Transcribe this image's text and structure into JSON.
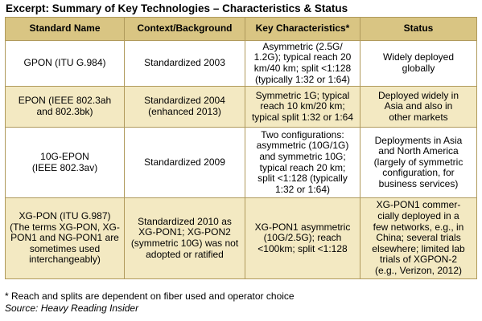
{
  "title": "Excerpt: Summary of Key Technologies – Characteristics & Status",
  "table": {
    "headers": [
      "Standard Name",
      "Context/Background",
      "Key Characteristics*",
      "Status"
    ],
    "rows": [
      {
        "name": [
          "GPON (ITU G.984)"
        ],
        "context": [
          "Standardized 2003"
        ],
        "characteristics": [
          "Asymmetric (2.5G/",
          "1.2G); typical reach 20",
          "km/40 km; split <1:128",
          "(typically 1:32 or 1:64)"
        ],
        "status": [
          "Widely deployed",
          "globally"
        ]
      },
      {
        "name": [
          "EPON (IEEE 802.3ah",
          "and 802.3bk)"
        ],
        "context": [
          "Standardized 2004",
          "(enhanced 2013)"
        ],
        "characteristics": [
          "Symmetric 1G; typical",
          "reach 10 km/20 km;",
          "typical split 1:32 or 1:64"
        ],
        "status": [
          "Deployed widely in",
          "Asia and also in",
          "other markets"
        ]
      },
      {
        "name": [
          "10G-EPON",
          "(IEEE 802.3av)"
        ],
        "context": [
          "Standardized 2009"
        ],
        "characteristics": [
          "Two configurations:",
          "asymmetric (10G/1G)",
          "and symmetric 10G;",
          "typical reach 20 km;",
          "split <1:128 (typically",
          "1:32 or 1:64)"
        ],
        "status": [
          "Deployments in Asia",
          "and North America",
          "(largely of symmetric",
          "configuration, for",
          "business services)"
        ]
      },
      {
        "name": [
          "XG-PON (ITU G.987)",
          "(The terms XG-PON, XG-",
          "PON1 and NG-PON1 are",
          "sometimes used",
          "interchangeably)"
        ],
        "context": [
          "Standardized 2010 as",
          "XG-PON1; XG-PON2",
          "(symmetric 10G) was not",
          "adopted or ratified"
        ],
        "characteristics": [
          "XG-PON1 asymmetric",
          "(10G/2.5G); reach",
          "<100km; split <1:128"
        ],
        "status": [
          "XG-PON1 commer-",
          "cially deployed in a",
          "few networks, e.g., in",
          "China; several trials",
          "elsewhere; limited lab",
          "trials of XGPON-2",
          "(e.g., Verizon, 2012)"
        ]
      }
    ]
  },
  "footnote": "* Reach and splits are dependent on fiber used and operator choice",
  "source": "Source: Heavy Reading Insider"
}
